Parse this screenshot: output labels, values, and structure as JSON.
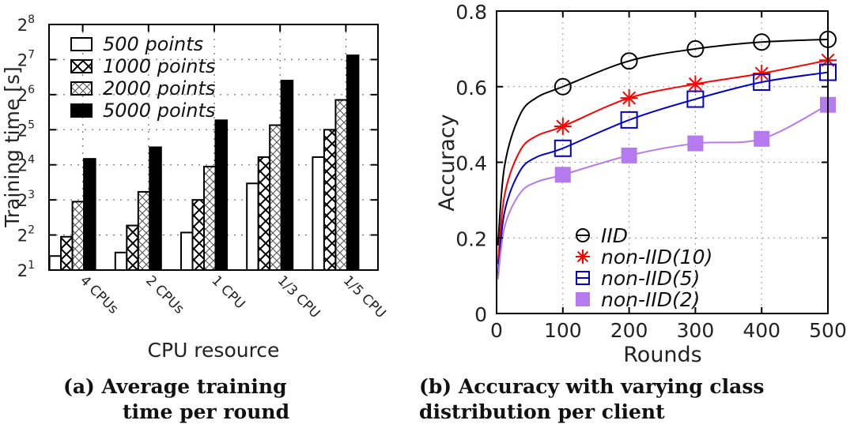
{
  "chart_data": [
    {
      "type": "bar",
      "title": "",
      "caption_line1": "(a) Average training",
      "caption_line2": "time per round",
      "xlabel": "CPU resource",
      "ylabel": "Training time [s]",
      "yscale": "log2",
      "ylim_exponents": [
        1,
        8
      ],
      "yticks": [
        {
          "base": "2",
          "exp": "1"
        },
        {
          "base": "2",
          "exp": "2"
        },
        {
          "base": "2",
          "exp": "3"
        },
        {
          "base": "2",
          "exp": "4"
        },
        {
          "base": "2",
          "exp": "5"
        },
        {
          "base": "2",
          "exp": "6"
        },
        {
          "base": "2",
          "exp": "7"
        },
        {
          "base": "2",
          "exp": "8"
        }
      ],
      "categories": [
        "4 CPUs",
        "2 CPUs",
        "1 CPU",
        "1/3 CPU",
        "1/5 CPU"
      ],
      "series": [
        {
          "name": "500 points",
          "pattern": "empty",
          "values_log2": [
            1.4,
            1.5,
            2.07,
            3.47,
            4.22
          ]
        },
        {
          "name": "1000 points",
          "pattern": "big-cross",
          "values_log2": [
            1.95,
            2.27,
            3.0,
            4.22,
            5.0
          ]
        },
        {
          "name": "2000 points",
          "pattern": "small-cross",
          "values_log2": [
            2.95,
            3.23,
            3.95,
            5.13,
            5.85
          ]
        },
        {
          "name": "5000 points",
          "pattern": "solid",
          "values_log2": [
            4.17,
            4.5,
            5.27,
            6.4,
            7.12
          ]
        }
      ],
      "legend_position": "top-left",
      "grid": true
    },
    {
      "type": "line",
      "title": "",
      "caption_line1": "(b) Accuracy with varying class",
      "caption_line2": "distribution per client",
      "xlabel": "Rounds",
      "ylabel": "Accuracy",
      "xlim": [
        0,
        500
      ],
      "ylim": [
        0,
        0.8
      ],
      "xticks": [
        "0",
        "100",
        "200",
        "300",
        "400",
        "500"
      ],
      "yticks": [
        "0",
        "0.2",
        "0.4",
        "0.6",
        "0.8"
      ],
      "x": [
        100,
        200,
        300,
        400,
        500
      ],
      "series": [
        {
          "name": "IID",
          "color": "#000000",
          "marker": "circle",
          "start": 0.18,
          "values": [
            0.6,
            0.668,
            0.7,
            0.718,
            0.725
          ]
        },
        {
          "name": "non-IID(10)",
          "color": "#ff0000",
          "marker": "asterisk",
          "start": 0.13,
          "values": [
            0.495,
            0.57,
            0.607,
            0.635,
            0.67
          ]
        },
        {
          "name": "non-IID(5)",
          "color": "#0000cc",
          "marker": "square-open",
          "start": 0.1,
          "values": [
            0.437,
            0.512,
            0.567,
            0.612,
            0.638
          ]
        },
        {
          "name": "non-IID(2)",
          "color": "#b57bee",
          "marker": "square-filled",
          "start": 0.09,
          "values": [
            0.367,
            0.418,
            0.45,
            0.462,
            0.552
          ]
        }
      ],
      "legend_position": "bottom-center",
      "grid": true
    }
  ]
}
